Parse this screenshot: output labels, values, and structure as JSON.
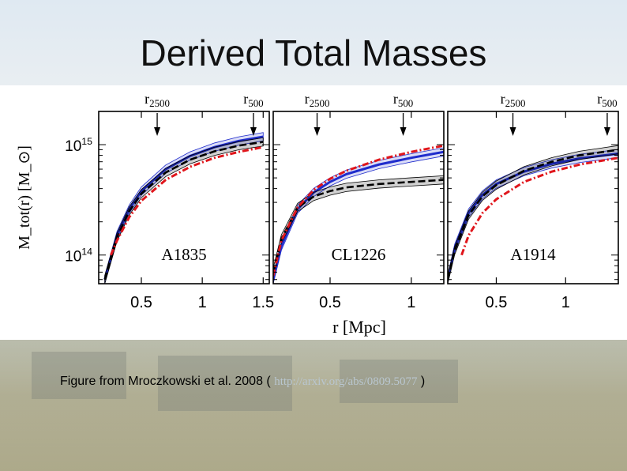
{
  "slide": {
    "title": "Derived Total Masses",
    "caption": {
      "prefix": "Figure from Mroczkowski et al. 2008 ( ",
      "link": "http://arxiv.org/abs/0809.5077",
      "suffix": " )"
    }
  },
  "chart_data": [
    {
      "type": "line",
      "panel_label": "A1835",
      "xlabel": "r [Mpc]",
      "ylabel": "M_tot(r) [M_⊙]",
      "yscale": "log",
      "xlim": [
        0.15,
        1.55
      ],
      "ylim": [
        55000000000000.0,
        2000000000000000.0
      ],
      "xticks": [
        0.5,
        1,
        1.5
      ],
      "xtick_labels": [
        "0.5",
        "1",
        "1.5"
      ],
      "yticks": [
        100000000000000.0,
        1000000000000000.0
      ],
      "ytick_labels": [
        "10^14",
        "10^15"
      ],
      "markers": [
        {
          "label": "r2500",
          "x": 0.63
        },
        {
          "label": "r500",
          "x": 1.42
        }
      ],
      "series": [
        {
          "color": "#1f2ccc",
          "style": "solid-band",
          "x": [
            0.2,
            0.3,
            0.4,
            0.5,
            0.7,
            0.9,
            1.1,
            1.3,
            1.5
          ],
          "y": [
            60000000000000.0,
            150000000000000.0,
            260000000000000.0,
            380000000000000.0,
            600000000000000.0,
            790000000000000.0,
            950000000000000.0,
            1080000000000000.0,
            1180000000000000.0
          ]
        },
        {
          "color": "#000000",
          "style": "dashed-band",
          "x": [
            0.2,
            0.3,
            0.4,
            0.5,
            0.7,
            0.9,
            1.1,
            1.3,
            1.5
          ],
          "y": [
            60000000000000.0,
            145000000000000.0,
            250000000000000.0,
            360000000000000.0,
            560000000000000.0,
            730000000000000.0,
            870000000000000.0,
            980000000000000.0,
            1060000000000000.0
          ]
        },
        {
          "color": "#e0161c",
          "style": "dashdot",
          "x": [
            0.25,
            0.3,
            0.4,
            0.5,
            0.7,
            0.9,
            1.1,
            1.3,
            1.5
          ],
          "y": [
            100000000000000.0,
            135000000000000.0,
            220000000000000.0,
            310000000000000.0,
            480000000000000.0,
            630000000000000.0,
            760000000000000.0,
            860000000000000.0,
            950000000000000.0
          ]
        }
      ]
    },
    {
      "type": "line",
      "panel_label": "CL1226",
      "xlabel": "r [Mpc]",
      "ylabel": "M_tot(r) [M_⊙]",
      "yscale": "log",
      "xlim": [
        0.15,
        1.2
      ],
      "ylim": [
        55000000000000.0,
        2000000000000000.0
      ],
      "xticks": [
        0.5,
        1
      ],
      "xtick_labels": [
        "0.5",
        "1"
      ],
      "markers": [
        {
          "label": "r2500",
          "x": 0.42
        },
        {
          "label": "r500",
          "x": 0.95
        }
      ],
      "series": [
        {
          "color": "#1f2ccc",
          "style": "solid-band",
          "x": [
            0.15,
            0.2,
            0.3,
            0.4,
            0.5,
            0.6,
            0.8,
            1.0,
            1.2
          ],
          "y": [
            60000000000000.0,
            120000000000000.0,
            260000000000000.0,
            370000000000000.0,
            460000000000000.0,
            540000000000000.0,
            660000000000000.0,
            760000000000000.0,
            860000000000000.0
          ]
        },
        {
          "color": "#000000",
          "style": "dashed-band",
          "x": [
            0.15,
            0.2,
            0.3,
            0.4,
            0.5,
            0.6,
            0.8,
            1.0,
            1.2
          ],
          "y": [
            70000000000000.0,
            140000000000000.0,
            270000000000000.0,
            340000000000000.0,
            380000000000000.0,
            410000000000000.0,
            440000000000000.0,
            460000000000000.0,
            480000000000000.0
          ]
        },
        {
          "color": "#e0161c",
          "style": "dashdot",
          "x": [
            0.15,
            0.2,
            0.3,
            0.4,
            0.5,
            0.6,
            0.8,
            1.0,
            1.2
          ],
          "y": [
            65000000000000.0,
            135000000000000.0,
            270000000000000.0,
            390000000000000.0,
            490000000000000.0,
            580000000000000.0,
            730000000000000.0,
            860000000000000.0,
            980000000000000.0
          ]
        }
      ]
    },
    {
      "type": "line",
      "panel_label": "A1914",
      "xlabel": "r [Mpc]",
      "ylabel": "M_tot(r) [M_⊙]",
      "yscale": "log",
      "xlim": [
        0.15,
        1.38
      ],
      "ylim": [
        55000000000000.0,
        2000000000000000.0
      ],
      "xticks": [
        0.5,
        1
      ],
      "xtick_labels": [
        "0.5",
        "1"
      ],
      "markers": [
        {
          "label": "r2500",
          "x": 0.62
        },
        {
          "label": "r500",
          "x": 1.3
        }
      ],
      "series": [
        {
          "color": "#1f2ccc",
          "style": "solid-band",
          "x": [
            0.15,
            0.2,
            0.3,
            0.4,
            0.5,
            0.7,
            0.9,
            1.1,
            1.38
          ],
          "y": [
            60000000000000.0,
            115000000000000.0,
            240000000000000.0,
            350000000000000.0,
            440000000000000.0,
            570000000000000.0,
            670000000000000.0,
            750000000000000.0,
            830000000000000.0
          ]
        },
        {
          "color": "#000000",
          "style": "dashed-band",
          "x": [
            0.15,
            0.2,
            0.3,
            0.4,
            0.5,
            0.7,
            0.9,
            1.1,
            1.38
          ],
          "y": [
            60000000000000.0,
            110000000000000.0,
            230000000000000.0,
            340000000000000.0,
            430000000000000.0,
            580000000000000.0,
            700000000000000.0,
            800000000000000.0,
            900000000000000.0
          ]
        },
        {
          "color": "#e0161c",
          "style": "dashdot",
          "x": [
            0.25,
            0.3,
            0.4,
            0.5,
            0.7,
            0.9,
            1.1,
            1.38
          ],
          "y": [
            100000000000000.0,
            150000000000000.0,
            240000000000000.0,
            320000000000000.0,
            460000000000000.0,
            570000000000000.0,
            660000000000000.0,
            760000000000000.0
          ]
        }
      ]
    }
  ]
}
